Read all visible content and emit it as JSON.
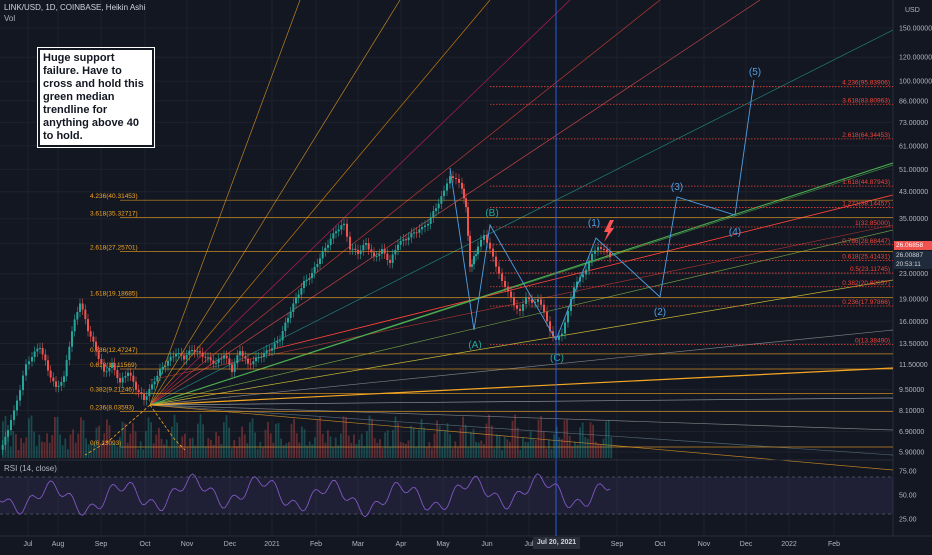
{
  "header": {
    "symbol": "LINK/USD, 1D, COINBASE, Heikin Ashi",
    "vol_label": "Vol",
    "rsi_label": "RSI (14, close)",
    "axis_unit_top": "USD"
  },
  "note": {
    "text": "Huge support failure. Have to cross and hold this green median trendline for anything above 40 to hold."
  },
  "colors": {
    "bg": "#131722",
    "up": "#26a69a",
    "down": "#ef5350",
    "rsi": "#7e57c2",
    "wave": "#4f9fe3",
    "fib": "#f44336",
    "fib_old": "#f5a623",
    "crosshair": "#2962ff"
  },
  "chart_data": {
    "type": "candlestick",
    "title": "LINK/USD, 1D, COINBASE, Heikin Ashi",
    "y_scale": "log",
    "ylim": [
      5.5,
      185
    ],
    "x_months": [
      "Jul",
      "Aug",
      "Sep",
      "Oct",
      "Nov",
      "Dec",
      "2021",
      "Feb",
      "Mar",
      "Apr",
      "May",
      "Jun",
      "Jul",
      "Jul 20, 2021",
      "Sep",
      "Oct",
      "Nov",
      "Dec",
      "2022",
      "Feb"
    ],
    "y_ticks": [
      "150.00000",
      "120.00000",
      "100.00000",
      "86.00000",
      "73.00000",
      "61.00000",
      "51.00000",
      "43.00000",
      "35.00000",
      "29.00000",
      "23.00000",
      "19.00000",
      "16.00000",
      "13.50000",
      "11.50000",
      "9.50000",
      "8.10000",
      "6.90000",
      "5.90000"
    ],
    "price_path": [
      [
        0,
        6.0
      ],
      [
        8,
        6.9
      ],
      [
        14,
        8.2
      ],
      [
        20,
        9.4
      ],
      [
        26,
        11.5
      ],
      [
        32,
        12.3
      ],
      [
        40,
        13.2
      ],
      [
        48,
        11.0
      ],
      [
        56,
        9.6
      ],
      [
        64,
        10.4
      ],
      [
        72,
        14.8
      ],
      [
        80,
        18.5
      ],
      [
        88,
        15.0
      ],
      [
        96,
        12.8
      ],
      [
        104,
        10.8
      ],
      [
        112,
        11.5
      ],
      [
        120,
        10.0
      ],
      [
        128,
        10.9
      ],
      [
        136,
        9.6
      ],
      [
        144,
        8.8
      ],
      [
        152,
        9.8
      ],
      [
        160,
        11.0
      ],
      [
        168,
        11.8
      ],
      [
        176,
        12.6
      ],
      [
        184,
        12.1
      ],
      [
        192,
        12.9
      ],
      [
        200,
        12.5
      ],
      [
        208,
        12.0
      ],
      [
        216,
        11.6
      ],
      [
        224,
        12.4
      ],
      [
        232,
        11.0
      ],
      [
        240,
        12.8
      ],
      [
        248,
        11.5
      ],
      [
        256,
        12.0
      ],
      [
        264,
        12.5
      ],
      [
        272,
        13.1
      ],
      [
        280,
        14.0
      ],
      [
        288,
        16.5
      ],
      [
        296,
        19.0
      ],
      [
        304,
        21.5
      ],
      [
        312,
        23.0
      ],
      [
        320,
        26.0
      ],
      [
        328,
        29.0
      ],
      [
        336,
        32.0
      ],
      [
        344,
        33.5
      ],
      [
        350,
        28.0
      ],
      [
        358,
        27.0
      ],
      [
        366,
        29.0
      ],
      [
        374,
        26.0
      ],
      [
        382,
        27.5
      ],
      [
        390,
        25.0
      ],
      [
        398,
        29.0
      ],
      [
        406,
        30.0
      ],
      [
        414,
        31.5
      ],
      [
        422,
        32.5
      ],
      [
        428,
        34.0
      ],
      [
        436,
        38.0
      ],
      [
        444,
        43.0
      ],
      [
        450,
        49.0
      ],
      [
        456,
        47.0
      ],
      [
        462,
        44.0
      ],
      [
        466,
        38.0
      ],
      [
        470,
        24.0
      ],
      [
        474,
        26.0
      ],
      [
        478,
        28.0
      ],
      [
        484,
        31.0
      ],
      [
        490,
        28.0
      ],
      [
        496,
        24.0
      ],
      [
        502,
        22.0
      ],
      [
        508,
        20.0
      ],
      [
        514,
        18.0
      ],
      [
        520,
        17.5
      ],
      [
        526,
        19.0
      ],
      [
        532,
        18.5
      ],
      [
        538,
        19.0
      ],
      [
        544,
        17.0
      ],
      [
        550,
        15.0
      ],
      [
        556,
        13.8
      ],
      [
        562,
        14.5
      ],
      [
        568,
        17.5
      ],
      [
        574,
        20.5
      ],
      [
        580,
        22.5
      ],
      [
        586,
        23.8
      ],
      [
        592,
        26.5
      ],
      [
        598,
        28.5
      ],
      [
        604,
        27.5
      ],
      [
        610,
        26.0
      ]
    ],
    "fib_levels_new": [
      {
        "ratio": "4.236",
        "price": "95.83906"
      },
      {
        "ratio": "3.618",
        "price": "83.80963"
      },
      {
        "ratio": "2.618",
        "price": "64.34453"
      },
      {
        "ratio": "1.618",
        "price": "44.87943"
      },
      {
        "ratio": "1.272",
        "price": "38.14457"
      },
      {
        "ratio": "1",
        "price": "32.85000"
      },
      {
        "ratio": "0.786",
        "price": "28.68447"
      },
      {
        "ratio": "0.618",
        "price": "25.41431"
      },
      {
        "ratio": "0.5",
        "price": "23.11745"
      },
      {
        "ratio": "0.382",
        "price": "20.82057"
      },
      {
        "ratio": "0.236",
        "price": "17.97866"
      },
      {
        "ratio": "0",
        "price": "13.38490"
      }
    ],
    "fib_levels_old": [
      {
        "ratio": "4.236",
        "price": "40.31453"
      },
      {
        "ratio": "3.618",
        "price": "35.32717"
      },
      {
        "ratio": "2.618",
        "price": "27.25701"
      },
      {
        "ratio": "1.618",
        "price": "19.18685"
      },
      {
        "ratio": "0.786",
        "price": "12.47247"
      },
      {
        "ratio": "0.618",
        "price": "11.11569"
      },
      {
        "ratio": "0.382",
        "price": "9.21246"
      },
      {
        "ratio": "0.236",
        "price": "8.03593"
      },
      {
        "ratio": "0",
        "price": "6.13093"
      }
    ],
    "waves": [
      "(A)",
      "(B)",
      "(C)",
      "(1)",
      "(2)",
      "(3)",
      "(4)",
      "(5)"
    ],
    "rsi_ticks": [
      "75.00",
      "50.00",
      "25.00"
    ],
    "price_tags": [
      "26.06858",
      "26.00887",
      "20:53:11"
    ]
  }
}
